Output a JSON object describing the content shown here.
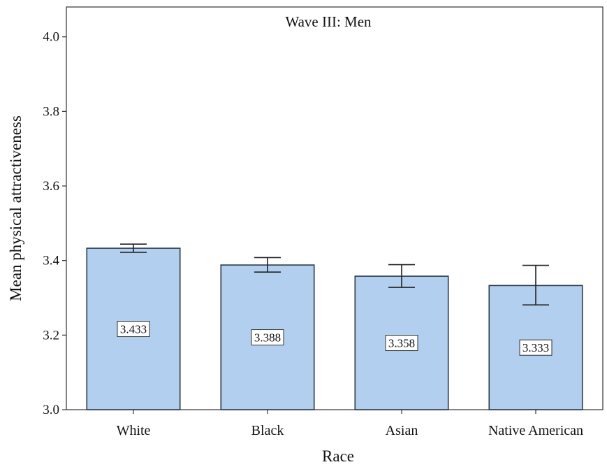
{
  "chart_data": {
    "type": "bar",
    "title": "Wave III:  Men",
    "xlabel": "Race",
    "ylabel": "Mean physical attractiveness",
    "categories": [
      "White",
      "Black",
      "Asian",
      "Native American"
    ],
    "values": [
      3.433,
      3.388,
      3.358,
      3.333
    ],
    "data_labels": [
      "3.433",
      "3.388",
      "3.358",
      "3.333"
    ],
    "error_bars": [
      {
        "low": 3.422,
        "high": 3.444
      },
      {
        "low": 3.369,
        "high": 3.408
      },
      {
        "low": 3.328,
        "high": 3.389
      },
      {
        "low": 3.281,
        "high": 3.387
      }
    ],
    "ylim": [
      3.0,
      4.08
    ],
    "yticks": [
      3.0,
      3.2,
      3.4,
      3.6,
      3.8,
      4.0
    ],
    "ytick_labels": [
      "3.0",
      "3.2",
      "3.4",
      "3.6",
      "3.8",
      "4.0"
    ],
    "grid": false,
    "bar_color": "#b3cfef",
    "bar_edge_color": "#2b3a4a"
  }
}
